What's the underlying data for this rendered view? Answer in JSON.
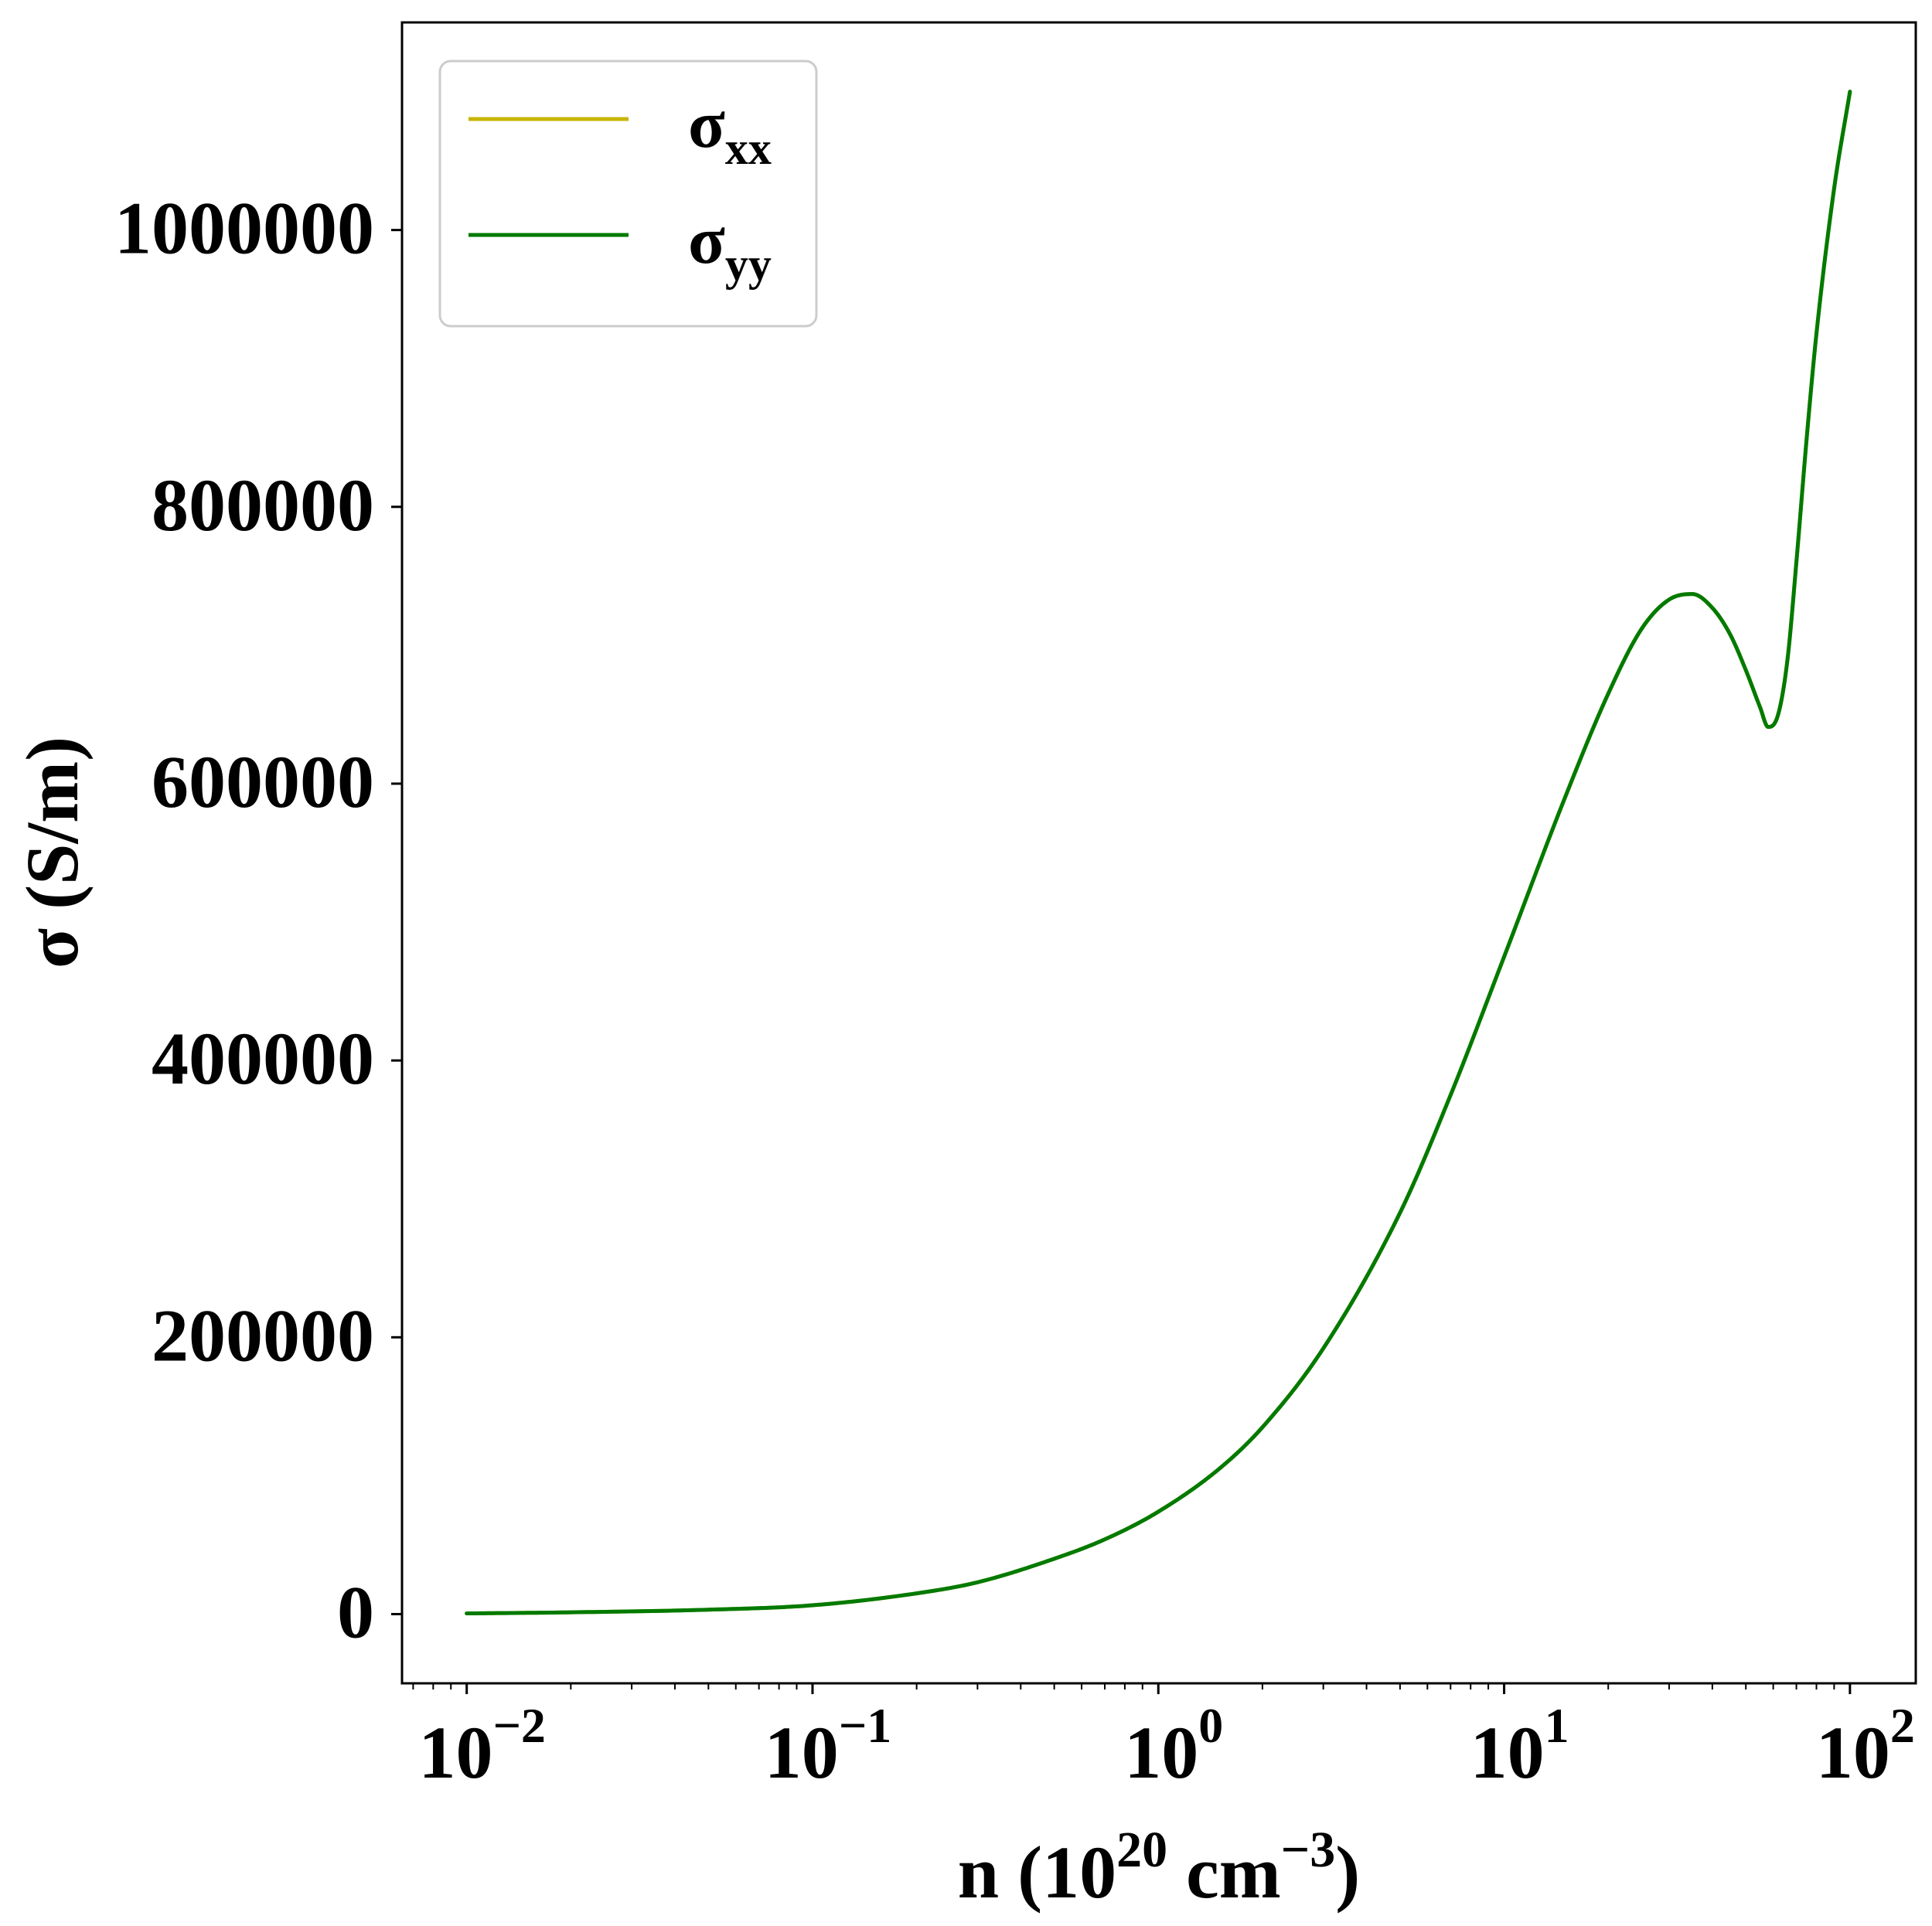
{
  "chart_data": {
    "type": "line",
    "xlabel": {
      "main": "n (10",
      "sup1": "20",
      "mid": " cm",
      "sup2": "−3",
      "end": ")"
    },
    "ylabel": "σ (S/m)",
    "xscale": "log",
    "xlim": [
      0.0065,
      155
    ],
    "ylim": [
      -50000,
      1150000
    ],
    "grid": false,
    "legend_position": "top-left",
    "x_ticks": [
      {
        "value": 0.01,
        "base": "10",
        "exp": "−2"
      },
      {
        "value": 0.1,
        "base": "10",
        "exp": "−1"
      },
      {
        "value": 1,
        "base": "10",
        "exp": "0"
      },
      {
        "value": 10,
        "base": "10",
        "exp": "1"
      },
      {
        "value": 100,
        "base": "10",
        "exp": "2"
      }
    ],
    "y_ticks": [
      {
        "value": 0,
        "label": "0"
      },
      {
        "value": 200000,
        "label": "200000"
      },
      {
        "value": 400000,
        "label": "400000"
      },
      {
        "value": 600000,
        "label": "600000"
      },
      {
        "value": 800000,
        "label": "800000"
      },
      {
        "value": 1000000,
        "label": "1000000"
      }
    ],
    "x": [
      0.01,
      0.02,
      0.05,
      0.1,
      0.2,
      0.3,
      0.5,
      0.7,
      1,
      1.5,
      2,
      3,
      5,
      7,
      10,
      15,
      20,
      25,
      30,
      35,
      40,
      45,
      50,
      55,
      58,
      62,
      66,
      70,
      75,
      80,
      90,
      100
    ],
    "series": [
      {
        "name": "xx",
        "name_base": "σ",
        "name_sub": "xx",
        "color": "#c8b400",
        "values": [
          500,
          1300,
          3200,
          6400,
          15000,
          23000,
          40000,
          54000,
          74000,
          105000,
          135000,
          192000,
          290000,
          375000,
          475000,
          590000,
          665000,
          712000,
          733000,
          737000,
          727000,
          708000,
          682000,
          655000,
          641000,
          650000,
          690000,
          760000,
          850000,
          925000,
          1030000,
          1100000
        ]
      },
      {
        "name": "yy",
        "name_base": "σ",
        "name_sub": "yy",
        "color": "#007a00",
        "values": [
          500,
          1300,
          3200,
          6400,
          15000,
          23000,
          40000,
          54000,
          74000,
          105000,
          135000,
          192000,
          290000,
          375000,
          475000,
          590000,
          665000,
          712000,
          733000,
          737000,
          727000,
          708000,
          682000,
          655000,
          641000,
          650000,
          690000,
          760000,
          850000,
          925000,
          1030000,
          1100000
        ]
      }
    ]
  }
}
